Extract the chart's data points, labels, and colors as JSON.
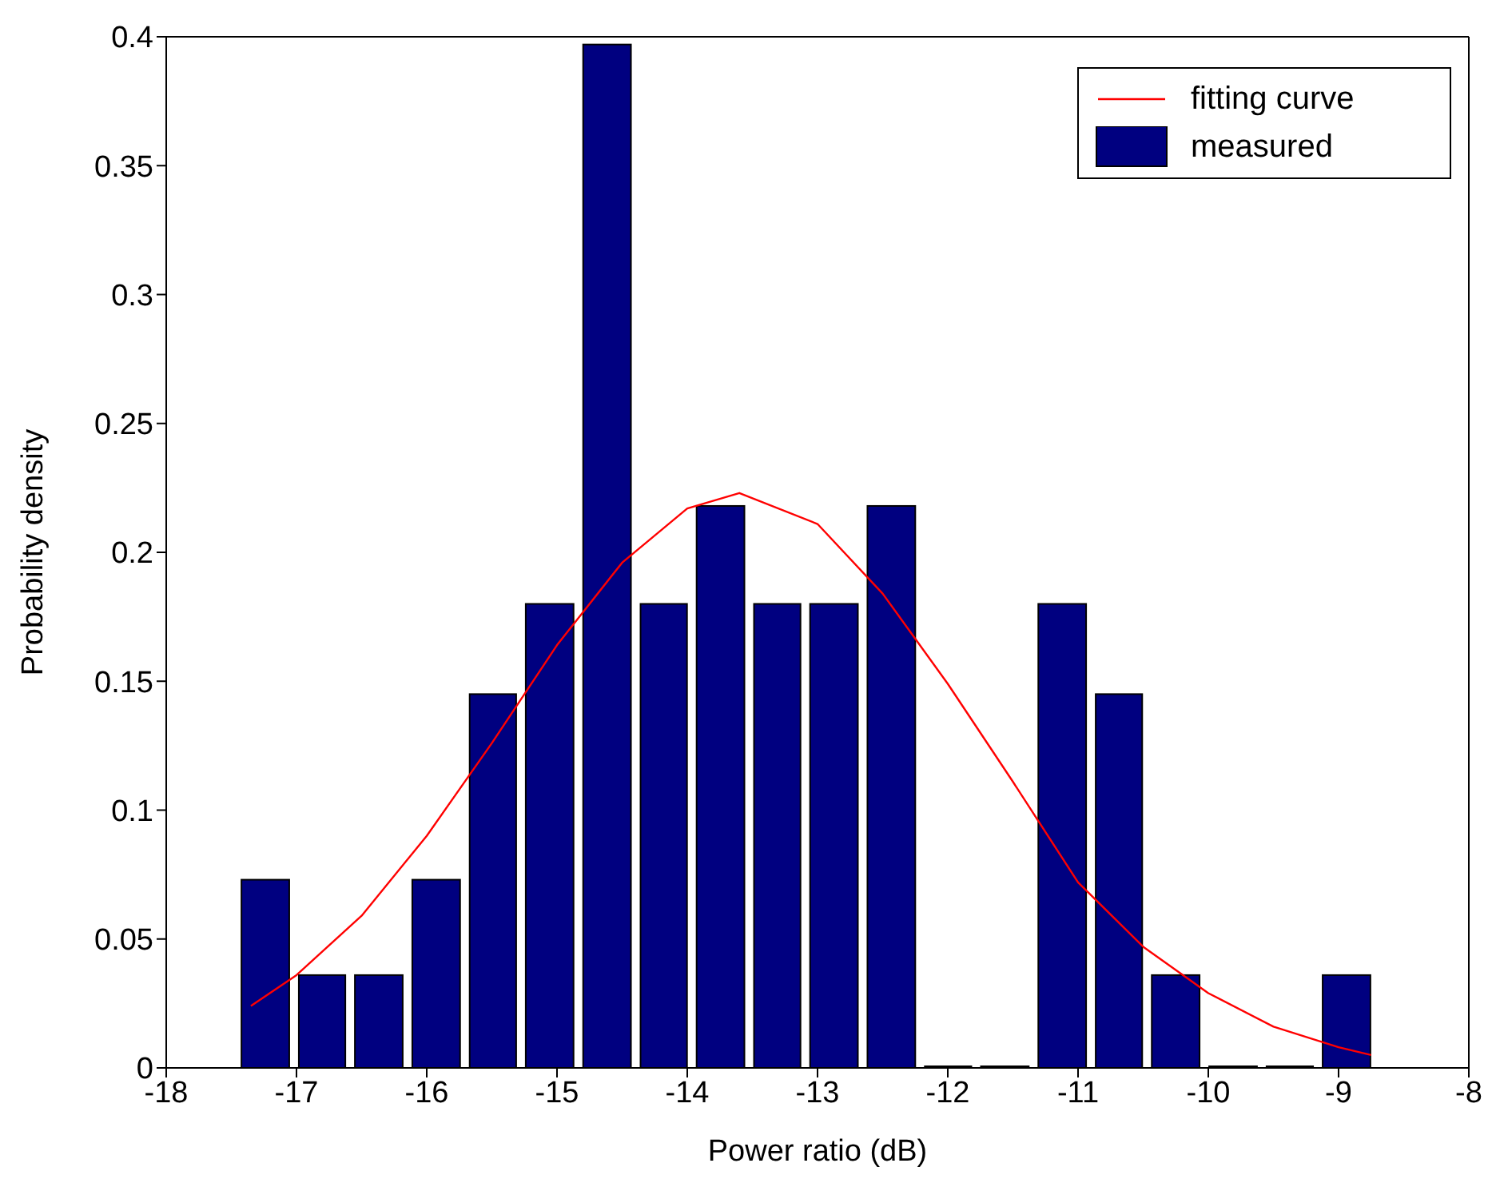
{
  "chart_data": {
    "type": "histogram",
    "xlabel": "Power ratio (dB)",
    "ylabel": "Probability density",
    "bins": [
      -17.46,
      -17.02,
      -16.59,
      -16.15,
      -15.71,
      -15.28,
      -14.84,
      -14.4,
      -13.97,
      -13.53,
      -13.1,
      -12.66,
      -12.22,
      -11.79,
      -11.35,
      -10.91,
      -10.48,
      -10.04,
      -9.6,
      -9.17,
      -8.73
    ],
    "series": [
      {
        "type": "line",
        "name": "fitting curve",
        "color": "#ff0000",
        "x": [
          -17.35,
          -17,
          -16.5,
          -16,
          -15.5,
          -15,
          -14.5,
          -14,
          -13.6,
          -13,
          -12.5,
          -12,
          -11.5,
          -11,
          -10.5,
          -10,
          -9.5,
          -9,
          -8.75
        ],
        "values": [
          0.024,
          0.036,
          0.059,
          0.09,
          0.126,
          0.164,
          0.196,
          0.217,
          0.223,
          0.211,
          0.184,
          0.149,
          0.111,
          0.072,
          0.047,
          0.029,
          0.016,
          0.008,
          0.005
        ]
      },
      {
        "type": "histogram",
        "name": "measured",
        "color": "#000080",
        "values": [
          0.073,
          0.036,
          0.036,
          0.073,
          0.145,
          0.18,
          0.397,
          0.18,
          0.218,
          0.18,
          0.18,
          0.218,
          0,
          0,
          0.18,
          0.145,
          0.036,
          0,
          0,
          0.036
        ]
      }
    ],
    "xlim": [
      -18,
      -8
    ],
    "xticks": [
      -18,
      -17,
      -16,
      -15,
      -14,
      -13,
      -12,
      -11,
      -10,
      -9,
      -8
    ],
    "ylim": [
      0,
      0.4
    ],
    "yticks": [
      0,
      0.05,
      0.1,
      0.15,
      0.2,
      0.25,
      0.3,
      0.35,
      0.4
    ],
    "grid": false,
    "legend": "top right",
    "marker": "none",
    "line_style": "solid"
  }
}
